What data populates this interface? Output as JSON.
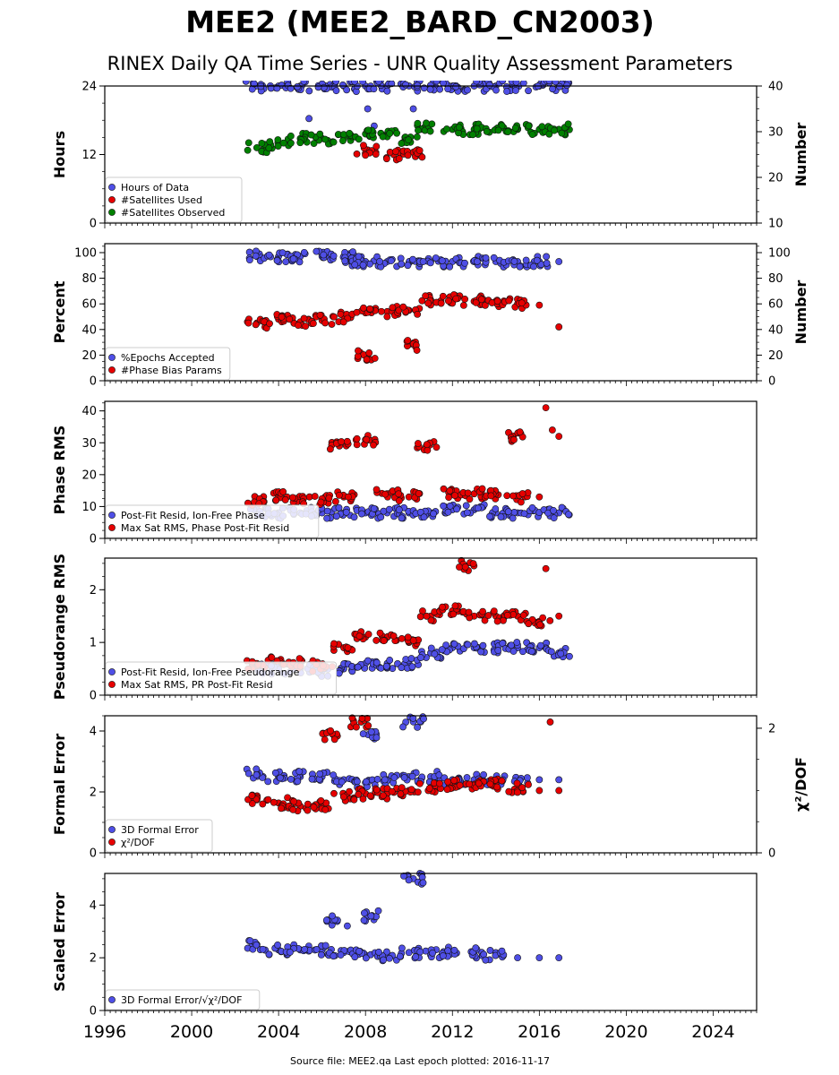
{
  "title": "MEE2 (MEE2_BARD_CN2003)",
  "subtitle": "RINEX Daily QA Time Series - UNR Quality Assessment Parameters",
  "source_text": "Source file: MEE2.qa Last epoch plotted: 2016-11-17",
  "chart_data": [
    {
      "type": "scatter",
      "ylabel": "Hours",
      "ylabel_right": "Number",
      "ylim": [
        0,
        24
      ],
      "yticks": [
        0,
        12,
        24
      ],
      "ylim_right": [
        10,
        40
      ],
      "yticks_right": [
        10,
        20,
        30,
        40
      ],
      "xlim": [
        1996,
        2026
      ],
      "legend_placement": "lower-left",
      "series": [
        {
          "name": "Hours of Data",
          "color": "#4f4fe6",
          "axis": "left",
          "x": [
            2003.0,
            2004.0,
            2005.0,
            2006.0,
            2007.0,
            2008.0,
            2009.0,
            2010.0,
            2011.0,
            2012.0,
            2013.0,
            2014.0,
            2015.0,
            2016.0,
            2016.9,
            2005.4,
            2008.1,
            2008.4,
            2009.3,
            2010.2
          ],
          "y": [
            24,
            24,
            24,
            24,
            24,
            24,
            24,
            24,
            24,
            24,
            24,
            24,
            24,
            24,
            24,
            18.3,
            20,
            17,
            12,
            20
          ]
        },
        {
          "name": "#Satellites Used",
          "color": "#e60000",
          "axis": "right",
          "x": [
            2008.1,
            2009.3,
            2010.2
          ],
          "y": [
            26,
            25,
            25.5
          ]
        },
        {
          "name": "#Satellites Observed",
          "color": "#008000",
          "axis": "right",
          "x": [
            2003.0,
            2004.0,
            2005.0,
            2006.0,
            2007.0,
            2008.0,
            2009.0,
            2010.0,
            2010.8,
            2012.0,
            2013.0,
            2014.0,
            2015.0,
            2016.0,
            2016.9
          ],
          "y": [
            26.5,
            27.5,
            28.5,
            28.5,
            28.5,
            29.5,
            29.5,
            28.5,
            31,
            30.5,
            30.5,
            30.5,
            30.5,
            30.5,
            30.5
          ]
        }
      ],
      "x_tick_labels": [],
      "grid": false
    },
    {
      "type": "scatter",
      "ylabel": "Percent",
      "ylabel_right": "Number",
      "ylim": [
        0,
        107
      ],
      "yticks": [
        0,
        20,
        40,
        60,
        80,
        100
      ],
      "ylim_right": [
        0,
        107
      ],
      "yticks_right": [
        0,
        20,
        40,
        60,
        80,
        100
      ],
      "xlim": [
        1996,
        2026
      ],
      "legend_placement": "lower-left",
      "series": [
        {
          "name": "%Epochs Accepted",
          "color": "#4f4fe6",
          "axis": "left",
          "x": [
            2003.0,
            2004.0,
            2005.0,
            2006.0,
            2007.0,
            2007.5,
            2008.0,
            2009.0,
            2010.0,
            2011.0,
            2012.0,
            2013.0,
            2014.0,
            2015.0,
            2016.0,
            2016.9
          ],
          "y": [
            97,
            97,
            97,
            97,
            97,
            94,
            93,
            93,
            92,
            93,
            93,
            93,
            93,
            93,
            93,
            93
          ]
        },
        {
          "name": "#Phase Bias Params",
          "color": "#e60000",
          "axis": "right",
          "x": [
            2003.0,
            2004.0,
            2005.0,
            2006.0,
            2007.0,
            2008.0,
            2008.1,
            2009.0,
            2010.0,
            2010.3,
            2011.0,
            2012.0,
            2013.0,
            2014.0,
            2015.0,
            2016.0,
            2016.9
          ],
          "y": [
            45,
            48,
            46,
            47,
            50,
            53,
            20,
            54,
            55,
            28,
            63,
            63,
            62,
            62,
            60,
            59,
            42
          ]
        }
      ],
      "x_tick_labels": [],
      "grid": false
    },
    {
      "type": "scatter",
      "ylabel": "Phase RMS",
      "ylim": [
        0,
        43
      ],
      "yticks": [
        0,
        10,
        20,
        30,
        40
      ],
      "xlim": [
        1996,
        2026
      ],
      "legend_placement": "lower-left",
      "series": [
        {
          "name": "Post-Fit Resid, Ion-Free Phase",
          "color": "#4f4fe6",
          "x": [
            2003.0,
            2004.0,
            2005.0,
            2006.0,
            2007.0,
            2008.0,
            2009.0,
            2010.0,
            2011.0,
            2012.0,
            2013.0,
            2014.0,
            2015.0,
            2016.0,
            2016.9
          ],
          "y": [
            8,
            8,
            8,
            8,
            8,
            8,
            8,
            8,
            8,
            9,
            9,
            8,
            8,
            8,
            8
          ]
        },
        {
          "name": "Max Sat RMS, Phase Post-Fit Resid",
          "color": "#e60000",
          "x": [
            2003.0,
            2004.0,
            2005.0,
            2006.0,
            2006.8,
            2007.0,
            2008.0,
            2009.0,
            2010.0,
            2010.8,
            2012.0,
            2013.0,
            2014.0,
            2014.8,
            2015.0,
            2016.0,
            2016.3,
            2016.6,
            2016.9
          ],
          "y": [
            12,
            13,
            12,
            12,
            29,
            13,
            31,
            14,
            13,
            29,
            14,
            14,
            14,
            32,
            13,
            13,
            41,
            34,
            32
          ]
        }
      ],
      "x_tick_labels": [],
      "grid": false
    },
    {
      "type": "scatter",
      "ylabel": "Pseudorange RMS",
      "ylim": [
        0,
        2.6
      ],
      "yticks": [
        0,
        1,
        2
      ],
      "xlim": [
        1996,
        2026
      ],
      "legend_placement": "lower-left",
      "series": [
        {
          "name": "Post-Fit Resid, Ion-Free Pseudorange",
          "color": "#4f4fe6",
          "x": [
            2003.0,
            2004.0,
            2005.0,
            2006.0,
            2007.0,
            2008.0,
            2009.0,
            2010.0,
            2011.0,
            2012.0,
            2013.0,
            2014.0,
            2015.0,
            2016.0,
            2016.9
          ],
          "y": [
            0.5,
            0.5,
            0.5,
            0.45,
            0.5,
            0.6,
            0.6,
            0.6,
            0.8,
            0.9,
            0.9,
            0.9,
            0.9,
            0.9,
            0.8
          ]
        },
        {
          "name": "Max Sat RMS, PR Post-Fit Resid",
          "color": "#e60000",
          "x": [
            2003.0,
            2004.0,
            2005.0,
            2006.0,
            2007.0,
            2008.0,
            2009.0,
            2010.0,
            2011.0,
            2012.0,
            2012.6,
            2013.0,
            2014.0,
            2015.0,
            2016.0,
            2016.3,
            2016.9
          ],
          "y": [
            0.6,
            0.65,
            0.6,
            0.55,
            0.9,
            1.1,
            1.1,
            1.0,
            1.5,
            1.6,
            2.45,
            1.5,
            1.5,
            1.5,
            1.4,
            2.4,
            1.5
          ]
        }
      ],
      "x_tick_labels": [],
      "grid": false
    },
    {
      "type": "scatter",
      "ylabel": "Formal Error",
      "ylabel_right": "χ²/DOF",
      "ylim": [
        0,
        4.5
      ],
      "yticks": [
        0,
        2,
        4
      ],
      "ylim_right": [
        0,
        2.2
      ],
      "yticks_right": [
        0,
        2
      ],
      "xlim": [
        1996,
        2026
      ],
      "legend_placement": "lower-left",
      "series": [
        {
          "name": "3D Formal Error",
          "color": "#4f4fe6",
          "axis": "left",
          "x": [
            2003.0,
            2004.0,
            2005.0,
            2006.0,
            2007.0,
            2008.0,
            2008.2,
            2009.0,
            2010.0,
            2010.2,
            2011.0,
            2012.0,
            2013.0,
            2014.0,
            2015.0,
            2016.0,
            2016.9
          ],
          "y": [
            2.6,
            2.5,
            2.5,
            2.5,
            2.4,
            2.3,
            3.9,
            2.4,
            2.5,
            4.3,
            2.5,
            2.4,
            2.4,
            2.4,
            2.4,
            2.4,
            2.4
          ]
        },
        {
          "name": "χ²/DOF",
          "color": "#e60000",
          "axis": "right",
          "x": [
            2003.0,
            2004.0,
            2005.0,
            2006.0,
            2006.5,
            2007.0,
            2007.8,
            2008.0,
            2009.0,
            2010.0,
            2011.0,
            2012.0,
            2013.0,
            2014.0,
            2015.0,
            2016.0,
            2016.5,
            2016.9
          ],
          "y": [
            0.85,
            0.8,
            0.75,
            0.75,
            1.9,
            0.9,
            2.1,
            0.95,
            0.95,
            1.0,
            1.05,
            1.1,
            1.1,
            1.1,
            1.05,
            1.0,
            2.1,
            1.0
          ]
        }
      ],
      "x_tick_labels": [],
      "grid": false
    },
    {
      "type": "scatter",
      "ylabel": "Scaled Error",
      "ylim": [
        0,
        5.2
      ],
      "yticks": [
        0,
        2,
        4
      ],
      "xlim": [
        1996,
        2026
      ],
      "legend_placement": "lower-left",
      "series": [
        {
          "name": "3D Formal Error/√χ²/DOF",
          "color": "#4f4fe6",
          "x": [
            2003.0,
            2004.0,
            2005.0,
            2006.0,
            2006.7,
            2007.0,
            2008.0,
            2008.3,
            2009.0,
            2010.0,
            2010.2,
            2011.0,
            2012.0,
            2013.0,
            2014.0,
            2015.0,
            2016.0,
            2016.9
          ],
          "y": [
            2.5,
            2.3,
            2.3,
            2.3,
            3.4,
            2.2,
            2.1,
            3.6,
            2.1,
            2.2,
            5.0,
            2.1,
            2.2,
            2.2,
            2.1,
            2.0,
            2.0,
            2.0
          ]
        }
      ],
      "x_tick_labels": [
        "1996",
        "2000",
        "2004",
        "2008",
        "2012",
        "2016",
        "2020",
        "2024"
      ],
      "grid": false
    }
  ]
}
